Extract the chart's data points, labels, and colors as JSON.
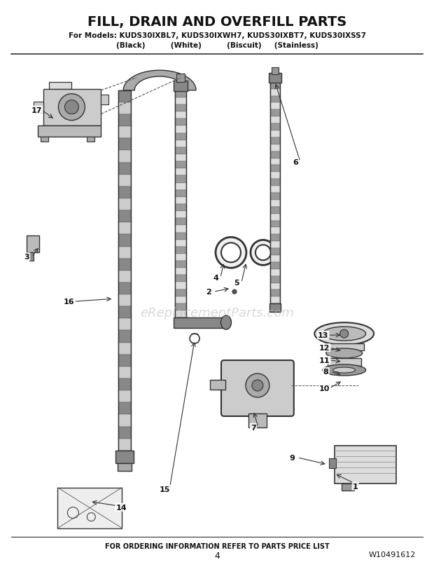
{
  "title": "FILL, DRAIN AND OVERFILL PARTS",
  "subtitle": "For Models: KUDS30IXBL7, KUDS30IXWH7, KUDS30IXBT7, KUDS30IXSS7",
  "subtitle2": "(Black)          (White)          (Biscuit)     (Stainless)",
  "footer": "FOR ORDERING INFORMATION REFER TO PARTS PRICE LIST",
  "page_num": "4",
  "part_num": "W10491612",
  "bg_color": "#ffffff",
  "watermark": "eReplacementParts.com"
}
